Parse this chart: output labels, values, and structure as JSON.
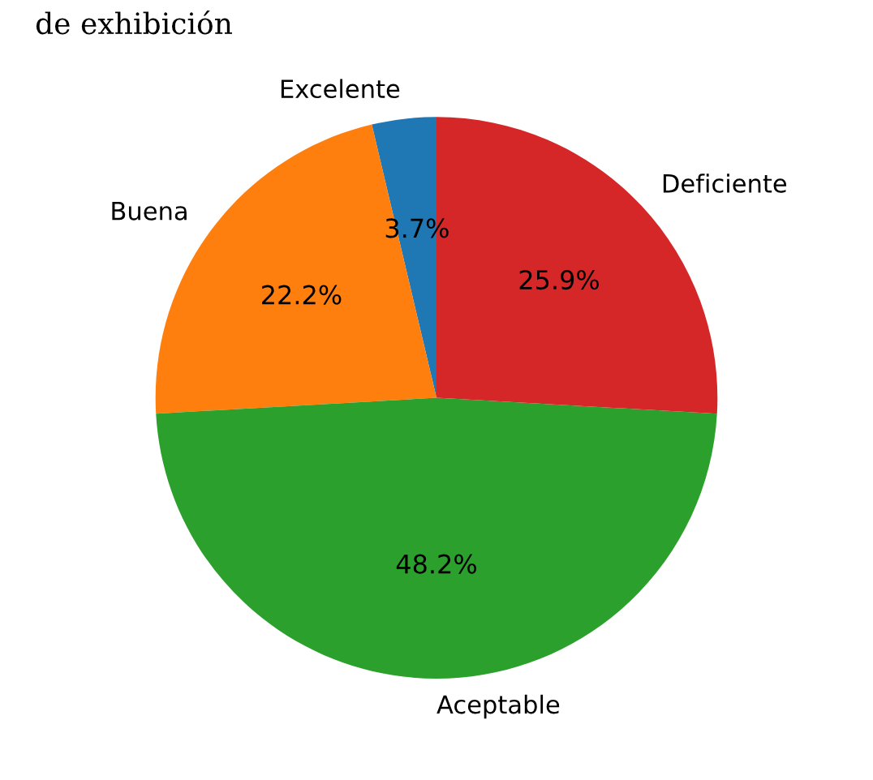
{
  "chart_data": {
    "type": "pie",
    "title": "de exhibición",
    "categories": [
      "Excelente",
      "Buena",
      "Aceptable",
      "Deficiente"
    ],
    "values": [
      3.7,
      22.2,
      48.2,
      25.9
    ],
    "colors": [
      "#1f77b4",
      "#ff7f0e",
      "#2ca02c",
      "#d62728"
    ],
    "value_labels": [
      "3.7%",
      "22.2%",
      "48.2%",
      "25.9%"
    ]
  }
}
